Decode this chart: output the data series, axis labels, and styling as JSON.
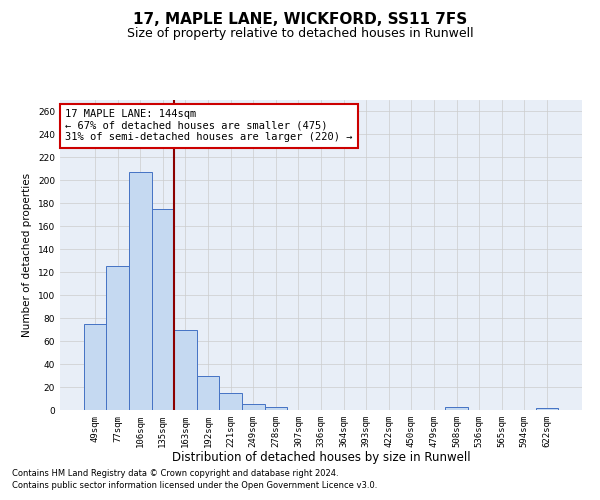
{
  "title_line1": "17, MAPLE LANE, WICKFORD, SS11 7FS",
  "title_line2": "Size of property relative to detached houses in Runwell",
  "xlabel": "Distribution of detached houses by size in Runwell",
  "ylabel": "Number of detached properties",
  "categories": [
    "49sqm",
    "77sqm",
    "106sqm",
    "135sqm",
    "163sqm",
    "192sqm",
    "221sqm",
    "249sqm",
    "278sqm",
    "307sqm",
    "336sqm",
    "364sqm",
    "393sqm",
    "422sqm",
    "450sqm",
    "479sqm",
    "508sqm",
    "536sqm",
    "565sqm",
    "594sqm",
    "622sqm"
  ],
  "values": [
    75,
    125,
    207,
    175,
    70,
    30,
    15,
    5,
    3,
    0,
    0,
    0,
    0,
    0,
    0,
    0,
    3,
    0,
    0,
    0,
    2
  ],
  "bar_color": "#c5d9f1",
  "bar_edge_color": "#4472c4",
  "vline_x_index": 3.5,
  "vline_color": "#8B0000",
  "annotation_text": "17 MAPLE LANE: 144sqm\n← 67% of detached houses are smaller (475)\n31% of semi-detached houses are larger (220) →",
  "annotation_box_color": "#ffffff",
  "annotation_box_edge_color": "#cc0000",
  "ylim": [
    0,
    270
  ],
  "yticks": [
    0,
    20,
    40,
    60,
    80,
    100,
    120,
    140,
    160,
    180,
    200,
    220,
    240,
    260
  ],
  "grid_color": "#cccccc",
  "bg_color": "#e8eef7",
  "footer_line1": "Contains HM Land Registry data © Crown copyright and database right 2024.",
  "footer_line2": "Contains public sector information licensed under the Open Government Licence v3.0.",
  "title_fontsize": 11,
  "subtitle_fontsize": 9,
  "xlabel_fontsize": 8.5,
  "ylabel_fontsize": 7.5,
  "tick_fontsize": 6.5,
  "footer_fontsize": 6.0,
  "annot_fontsize": 7.5
}
